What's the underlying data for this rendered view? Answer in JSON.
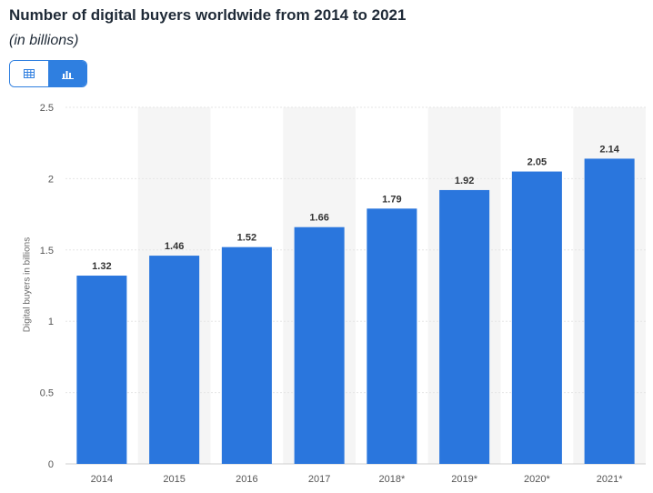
{
  "header": {
    "title": "Number of digital buyers worldwide from 2014 to 2021",
    "subtitle": "(in billions)"
  },
  "toggle": {
    "table_icon": "table-icon",
    "chart_icon": "bar-chart-icon",
    "active": "chart"
  },
  "colors": {
    "bar": "#2a76dd",
    "accent": "#2f7fe0",
    "band": "#f5f5f5",
    "grid": "#e6e6e6"
  },
  "chart_data": {
    "type": "bar",
    "title": "Number of digital buyers worldwide from 2014 to 2021",
    "subtitle": "(in billions)",
    "xlabel": "",
    "ylabel": "Digital buyers in billions",
    "ylim": [
      0,
      2.5
    ],
    "yticks": [
      "0",
      "0.5",
      "1",
      "1.5",
      "2",
      "2.5"
    ],
    "categories": [
      "2014",
      "2015",
      "2016",
      "2017",
      "2018*",
      "2019*",
      "2020*",
      "2021*"
    ],
    "values": [
      1.32,
      1.46,
      1.52,
      1.66,
      1.79,
      1.92,
      2.05,
      2.14
    ],
    "value_labels": [
      "1.32",
      "1.46",
      "1.52",
      "1.66",
      "1.79",
      "1.92",
      "2.05",
      "2.14"
    ],
    "grid": true,
    "legend": "none"
  }
}
